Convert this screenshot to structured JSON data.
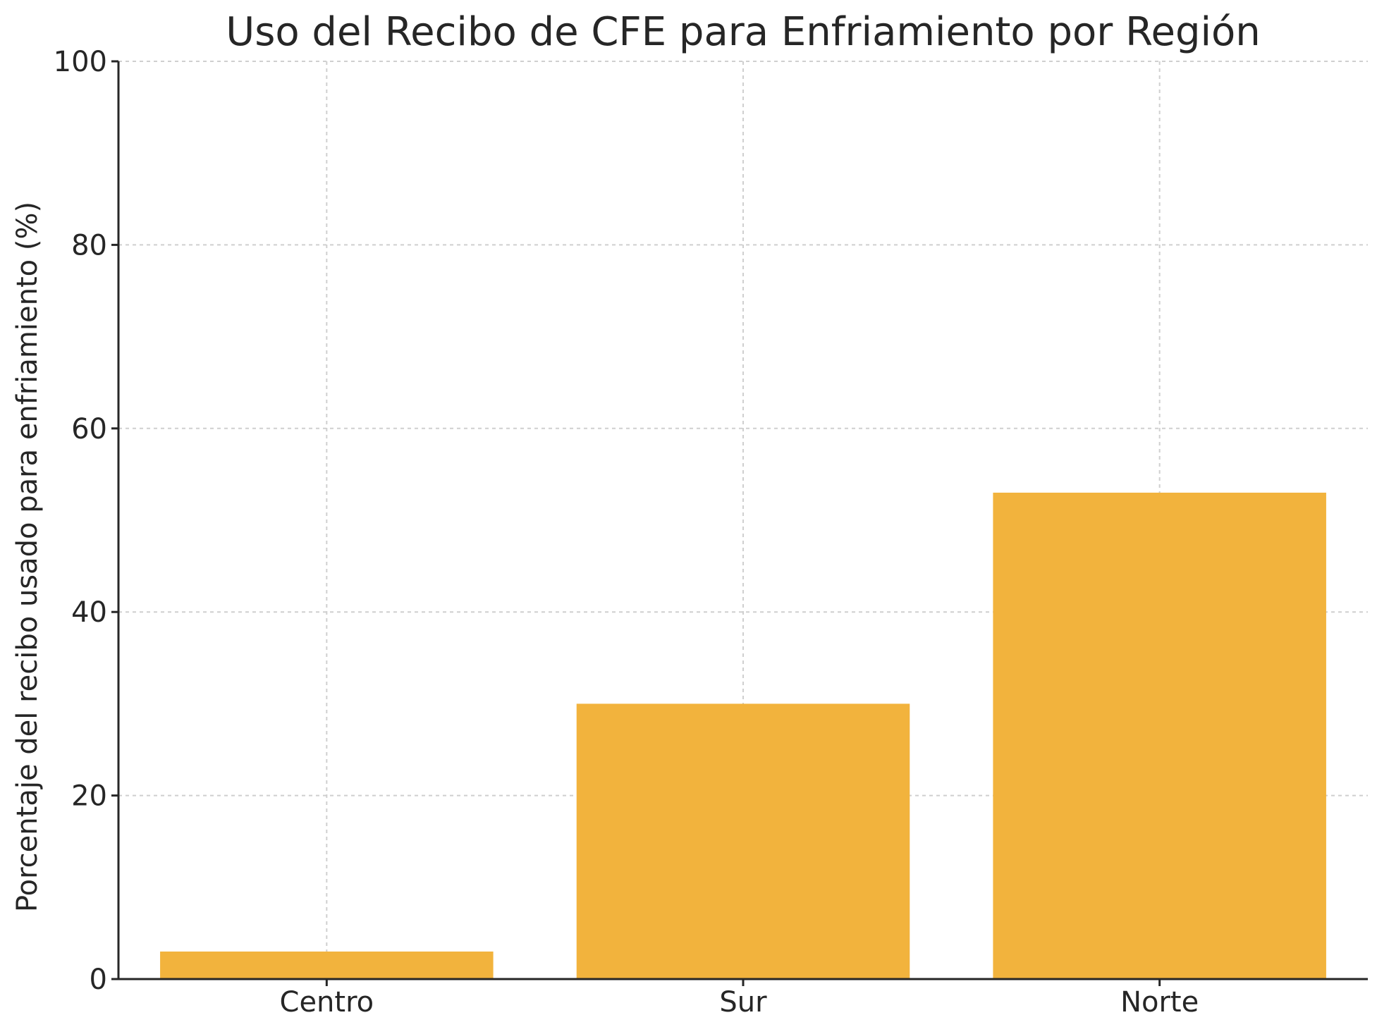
{
  "chart_data": {
    "type": "bar",
    "title": "Uso del Recibo de CFE para Enfriamiento por Región",
    "xlabel": "",
    "ylabel": "Porcentaje del recibo usado para enfriamiento (%)",
    "categories": [
      "Centro",
      "Sur",
      "Norte"
    ],
    "values": [
      3,
      30,
      53
    ],
    "ylim": [
      0,
      100
    ],
    "yticks": [
      0,
      20,
      40,
      60,
      80,
      100
    ],
    "grid": true,
    "bar_color": "#f2b33d"
  }
}
